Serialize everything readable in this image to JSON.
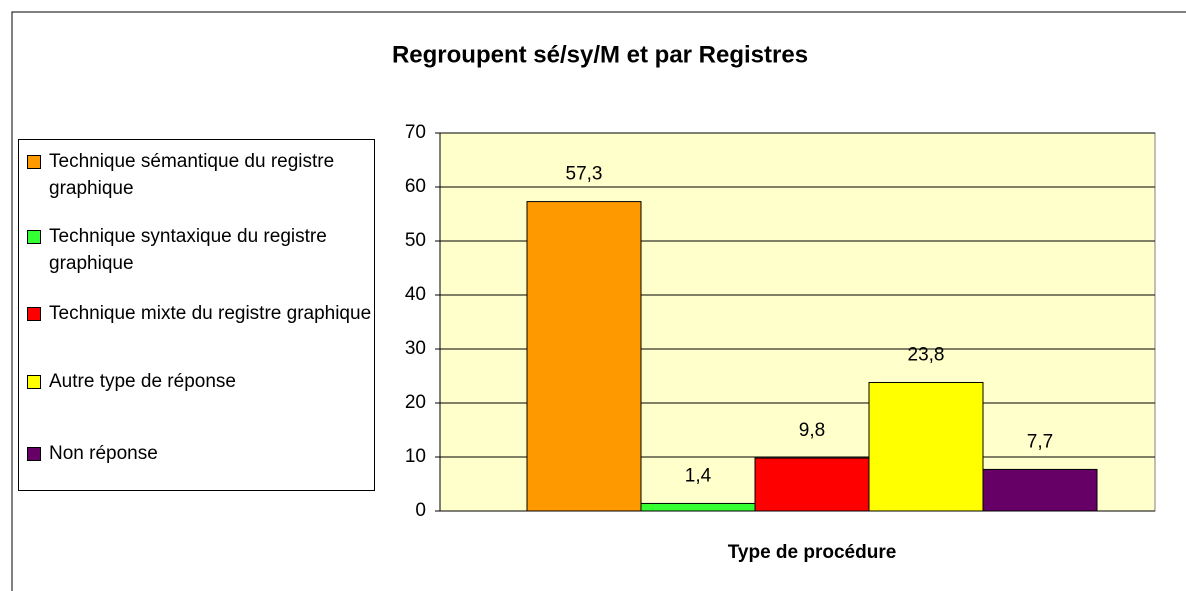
{
  "chart_data": {
    "type": "bar",
    "title": "Regroupent sé/sy/M et par Registres",
    "x_label": "Type de procédure",
    "categories": [
      null
    ],
    "series": [
      {
        "name": "Technique sémantique du registre graphique",
        "color": "#ff9900",
        "values": [
          57.3
        ],
        "value_labels": [
          "57,3"
        ]
      },
      {
        "name": "Technique syntaxique du registre graphique",
        "color": "#33ff33",
        "values": [
          1.4
        ],
        "value_labels": [
          "1,4"
        ]
      },
      {
        "name": "Technique mixte du registre graphique",
        "color": "#ff0000",
        "values": [
          9.8
        ],
        "value_labels": [
          "9,8"
        ]
      },
      {
        "name": "Autre type de réponse",
        "color": "#ffff00",
        "values": [
          23.8
        ],
        "value_labels": [
          "23,8"
        ]
      },
      {
        "name": "Non réponse",
        "color": "#660066",
        "values": [
          7.7
        ],
        "value_labels": [
          "7,7"
        ]
      }
    ],
    "ylim": [
      0,
      70
    ],
    "yticks": [
      0,
      10,
      20,
      30,
      40,
      50,
      60,
      70
    ],
    "grid": true,
    "legend": "left"
  }
}
